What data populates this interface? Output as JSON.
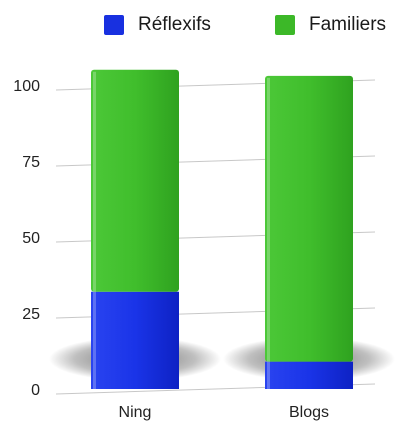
{
  "chart_data": {
    "type": "bar",
    "stacked": true,
    "categories": [
      "Ning",
      "Blogs"
    ],
    "series": [
      {
        "name": "Réflexifs",
        "values": [
          32,
          9
        ],
        "color": "#1830e0"
      },
      {
        "name": "Familiers",
        "values": [
          73,
          94
        ],
        "color": "#3cb828"
      }
    ],
    "ylim": [
      0,
      100
    ],
    "yticks": [
      0,
      25,
      50,
      75,
      100
    ],
    "grid": true,
    "legend_position": "top",
    "title": "",
    "xlabel": "",
    "ylabel": ""
  }
}
